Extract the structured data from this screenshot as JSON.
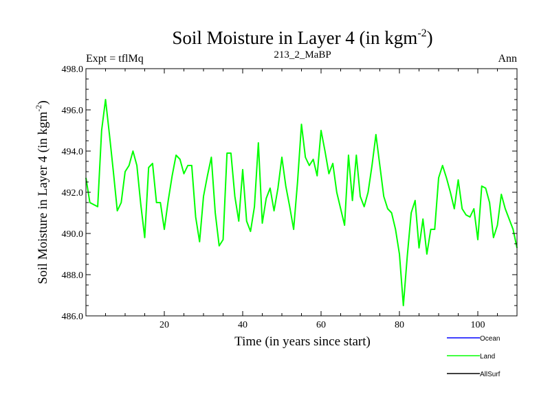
{
  "chart_data": {
    "type": "line",
    "title": "Soil Moisture in Layer 4 (in kgm",
    "title_sup": "-2",
    "title_close": ")",
    "subtitle_left": "Expt = tflMq",
    "subtitle_center": "213_2_MaBP",
    "subtitle_right": "Ann",
    "xlabel": "Time (in years since start)",
    "ylabel": "Soil Moisture in Layer 4 (in kgm",
    "ylabel_sup": "-2",
    "ylabel_close": ")",
    "xlim": [
      0,
      110
    ],
    "ylim": [
      486.0,
      498.0
    ],
    "xticks": [
      20,
      40,
      60,
      80,
      100
    ],
    "yticks": [
      "486.0",
      "488.0",
      "490.0",
      "492.0",
      "494.0",
      "496.0",
      "498.0"
    ],
    "legend": [
      {
        "name": "Ocean",
        "color": "#0000ff"
      },
      {
        "name": "Land",
        "color": "#00ff00"
      },
      {
        "name": "AllSurf",
        "color": "#000000"
      }
    ],
    "series": [
      {
        "name": "Land",
        "color": "#00ff00",
        "x": [
          0,
          1,
          2,
          3,
          4,
          5,
          6,
          7,
          8,
          9,
          10,
          11,
          12,
          13,
          14,
          15,
          16,
          17,
          18,
          19,
          20,
          21,
          22,
          23,
          24,
          25,
          26,
          27,
          28,
          29,
          30,
          31,
          32,
          33,
          34,
          35,
          36,
          37,
          38,
          39,
          40,
          41,
          42,
          43,
          44,
          45,
          46,
          47,
          48,
          49,
          50,
          51,
          52,
          53,
          54,
          55,
          56,
          57,
          58,
          59,
          60,
          61,
          62,
          63,
          64,
          65,
          66,
          67,
          68,
          69,
          70,
          71,
          72,
          73,
          74,
          75,
          76,
          77,
          78,
          79,
          80,
          81,
          82,
          83,
          84,
          85,
          86,
          87,
          88,
          89,
          90,
          91,
          92,
          93,
          94,
          95,
          96,
          97,
          98,
          99,
          100,
          101,
          102,
          103,
          104,
          105,
          106,
          107,
          108,
          109,
          110
        ],
        "values": [
          492.7,
          491.5,
          491.4,
          491.3,
          495.0,
          496.5,
          494.8,
          493.0,
          491.1,
          491.5,
          493.0,
          493.3,
          494.0,
          493.3,
          491.4,
          489.8,
          493.2,
          493.4,
          491.5,
          491.5,
          490.2,
          491.6,
          492.8,
          493.8,
          493.6,
          492.9,
          493.3,
          493.3,
          490.8,
          489.6,
          491.8,
          492.8,
          493.7,
          491.0,
          489.4,
          489.7,
          493.9,
          493.9,
          491.8,
          490.6,
          493.1,
          490.6,
          490.1,
          491.3,
          494.4,
          490.5,
          491.7,
          492.2,
          491.1,
          492.2,
          493.7,
          492.3,
          491.3,
          490.2,
          492.5,
          495.3,
          493.7,
          493.3,
          493.6,
          492.8,
          495.0,
          494.0,
          492.9,
          493.4,
          492.0,
          491.2,
          490.4,
          493.8,
          491.6,
          493.8,
          491.8,
          491.3,
          492.0,
          493.3,
          494.8,
          493.3,
          491.8,
          491.2,
          491.0,
          490.2,
          489.0,
          486.5,
          488.9,
          491.0,
          491.6,
          489.3,
          490.7,
          489.0,
          490.2,
          490.2,
          492.7,
          493.3,
          492.7,
          492.0,
          491.2,
          492.6,
          491.2,
          490.9,
          490.8,
          491.2,
          489.7,
          492.3,
          492.2,
          491.5,
          489.8,
          490.4,
          491.9,
          491.2,
          490.7,
          490.2,
          489.3
        ]
      }
    ]
  }
}
